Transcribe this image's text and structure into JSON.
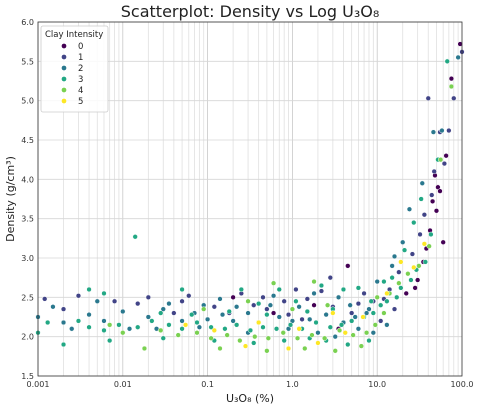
{
  "chart_data": {
    "type": "scatter",
    "title": "Scatterplot: Density vs Log U₃O₈",
    "xlabel": "U₃O₈ (%)",
    "ylabel": "Density (g/cm³)",
    "x_scale": "log",
    "xlim": [
      0.001,
      100.0
    ],
    "ylim": [
      1.5,
      6.0
    ],
    "x_ticks": [
      0.001,
      0.01,
      0.1,
      1.0,
      10.0,
      100.0
    ],
    "x_tick_labels": [
      "0.001",
      "0.01",
      "0.1",
      "1.0",
      "10.0",
      "100.0"
    ],
    "y_ticks": [
      1.5,
      2.0,
      2.5,
      3.0,
      3.5,
      4.0,
      4.5,
      5.0,
      5.5,
      6.0
    ],
    "y_tick_labels": [
      "1.5",
      "2.0",
      "2.5",
      "3.0",
      "3.5",
      "4.0",
      "4.5",
      "5.0",
      "5.5",
      "6.0"
    ],
    "grid": true,
    "legend": {
      "title": "Clay Intensity",
      "placement": "top-left",
      "entries": [
        {
          "label": "0",
          "color": "#440154"
        },
        {
          "label": "1",
          "color": "#414487"
        },
        {
          "label": "2",
          "color": "#2a788e"
        },
        {
          "label": "3",
          "color": "#22a884"
        },
        {
          "label": "4",
          "color": "#7ad151"
        },
        {
          "label": "5",
          "color": "#fde725"
        }
      ]
    },
    "series": [
      {
        "name": "0",
        "color": "#440154",
        "points": [
          [
            95,
            5.72
          ],
          [
            75,
            5.28
          ],
          [
            48,
            4.05
          ],
          [
            52,
            3.9
          ],
          [
            45,
            3.72
          ],
          [
            50,
            3.6
          ],
          [
            42,
            3.35
          ],
          [
            38,
            3.12
          ],
          [
            30,
            2.72
          ],
          [
            22,
            2.55
          ],
          [
            4.5,
            2.9
          ],
          [
            1.8,
            2.4
          ],
          [
            0.6,
            2.3
          ],
          [
            0.2,
            2.5
          ],
          [
            3.5,
            2.1
          ],
          [
            60,
            3.2
          ],
          [
            55,
            3.85
          ],
          [
            65,
            4.3
          ],
          [
            35,
            2.95
          ],
          [
            28,
            2.62
          ]
        ]
      },
      {
        "name": "1",
        "color": "#414487",
        "points": [
          [
            100,
            5.62
          ],
          [
            80,
            5.03
          ],
          [
            70,
            4.62
          ],
          [
            55,
            4.6
          ],
          [
            62,
            4.2
          ],
          [
            40,
            5.03
          ],
          [
            47,
            4.1
          ],
          [
            44,
            3.8
          ],
          [
            36,
            3.55
          ],
          [
            32,
            3.3
          ],
          [
            26,
            3.05
          ],
          [
            18,
            2.82
          ],
          [
            14,
            2.6
          ],
          [
            12,
            2.48
          ],
          [
            9,
            2.45
          ],
          [
            6,
            2.42
          ],
          [
            3,
            2.38
          ],
          [
            1.5,
            2.48
          ],
          [
            0.8,
            2.45
          ],
          [
            0.35,
            2.4
          ],
          [
            0.12,
            2.38
          ],
          [
            0.05,
            2.45
          ],
          [
            0.02,
            2.5
          ],
          [
            0.008,
            2.45
          ],
          [
            0.003,
            2.52
          ],
          [
            0.002,
            2.35
          ],
          [
            0.0012,
            2.48
          ],
          [
            0.04,
            2.3
          ],
          [
            0.25,
            2.55
          ],
          [
            2.2,
            2.58
          ],
          [
            7,
            2.55
          ],
          [
            0.015,
            2.42
          ],
          [
            0.06,
            2.52
          ],
          [
            0.5,
            2.35
          ],
          [
            1.1,
            2.6
          ],
          [
            5,
            2.3
          ],
          [
            2.8,
            2.75
          ],
          [
            0.9,
            2.28
          ],
          [
            0.18,
            2.3
          ],
          [
            0.45,
            2.5
          ],
          [
            1.3,
            2.22
          ],
          [
            11,
            2.2
          ],
          [
            16,
            2.35
          ]
        ]
      },
      {
        "name": "2",
        "color": "#2a788e",
        "points": [
          [
            90,
            5.55
          ],
          [
            58,
            4.62
          ],
          [
            46,
            4.6
          ],
          [
            34,
            3.95
          ],
          [
            24,
            3.62
          ],
          [
            20,
            3.2
          ],
          [
            16,
            3.02
          ],
          [
            15,
            2.9
          ],
          [
            10,
            2.7
          ],
          [
            8,
            2.35
          ],
          [
            5.5,
            2.25
          ],
          [
            4,
            2.18
          ],
          [
            2.5,
            2.28
          ],
          [
            1.6,
            2.22
          ],
          [
            1,
            2.2
          ],
          [
            0.7,
            2.25
          ],
          [
            0.4,
            2.18
          ],
          [
            0.3,
            2.3
          ],
          [
            0.2,
            2.2
          ],
          [
            0.15,
            2.28
          ],
          [
            0.1,
            2.22
          ],
          [
            0.07,
            2.3
          ],
          [
            0.05,
            2.2
          ],
          [
            0.03,
            2.35
          ],
          [
            0.02,
            2.25
          ],
          [
            0.01,
            2.32
          ],
          [
            0.006,
            2.2
          ],
          [
            0.004,
            2.28
          ],
          [
            0.002,
            2.18
          ],
          [
            0.001,
            2.25
          ],
          [
            0.0015,
            2.38
          ],
          [
            0.0025,
            2.1
          ],
          [
            0.005,
            2.45
          ],
          [
            0.012,
            2.1
          ],
          [
            0.025,
            2.1
          ],
          [
            0.08,
            2.12
          ],
          [
            0.3,
            2.05
          ],
          [
            0.9,
            2.1
          ],
          [
            2,
            2.05
          ],
          [
            3.2,
            2.0
          ],
          [
            6,
            2.1
          ],
          [
            9,
            2.05
          ],
          [
            13,
            2.15
          ],
          [
            1.2,
            2.38
          ],
          [
            0.55,
            2.4
          ],
          [
            0.22,
            2.38
          ],
          [
            0.09,
            2.4
          ],
          [
            0.035,
            2.42
          ],
          [
            0.6,
            2.52
          ],
          [
            1.8,
            2.55
          ],
          [
            3.5,
            2.5
          ],
          [
            0.14,
            2.48
          ],
          [
            4.8,
            2.4
          ],
          [
            7.5,
            2.3
          ]
        ]
      },
      {
        "name": "3",
        "color": "#22a884",
        "points": [
          [
            67,
            5.5
          ],
          [
            52,
            4.25
          ],
          [
            43,
            3.3
          ],
          [
            37,
            2.95
          ],
          [
            29,
            2.85
          ],
          [
            25,
            2.72
          ],
          [
            19,
            2.62
          ],
          [
            17,
            2.5
          ],
          [
            13,
            2.45
          ],
          [
            11,
            2.4
          ],
          [
            9,
            2.3
          ],
          [
            7,
            2.25
          ],
          [
            5,
            2.2
          ],
          [
            3.8,
            2.15
          ],
          [
            2.8,
            2.12
          ],
          [
            1.9,
            2.18
          ],
          [
            1.3,
            2.1
          ],
          [
            0.95,
            2.15
          ],
          [
            0.65,
            2.1
          ],
          [
            0.45,
            2.12
          ],
          [
            0.32,
            2.08
          ],
          [
            0.22,
            2.15
          ],
          [
            0.16,
            2.1
          ],
          [
            0.11,
            2.12
          ],
          [
            0.075,
            2.18
          ],
          [
            0.05,
            2.1
          ],
          [
            0.035,
            2.15
          ],
          [
            0.022,
            2.2
          ],
          [
            0.015,
            2.12
          ],
          [
            0.009,
            2.15
          ],
          [
            0.006,
            2.08
          ],
          [
            0.004,
            2.12
          ],
          [
            0.003,
            2.2
          ],
          [
            0.002,
            1.9
          ],
          [
            0.001,
            2.05
          ],
          [
            0.0013,
            2.18
          ],
          [
            0.007,
            1.95
          ],
          [
            0.03,
            1.98
          ],
          [
            0.12,
            1.95
          ],
          [
            0.35,
            1.92
          ],
          [
            0.8,
            1.95
          ],
          [
            1.6,
            1.98
          ],
          [
            2.5,
            1.95
          ],
          [
            4.5,
            1.9
          ],
          [
            8,
            1.95
          ],
          [
            0.014,
            3.27
          ],
          [
            0.004,
            2.6
          ],
          [
            0.006,
            2.55
          ],
          [
            0.05,
            2.6
          ],
          [
            0.25,
            2.6
          ],
          [
            0.7,
            2.6
          ],
          [
            2.2,
            2.65
          ],
          [
            6,
            2.62
          ],
          [
            12,
            2.7
          ],
          [
            4,
            2.6
          ],
          [
            1.5,
            2.32
          ],
          [
            0.5,
            2.28
          ],
          [
            0.18,
            2.32
          ],
          [
            0.065,
            2.28
          ],
          [
            0.028,
            2.3
          ],
          [
            3,
            2.35
          ],
          [
            8.5,
            2.45
          ],
          [
            0.4,
            2.42
          ],
          [
            1.1,
            2.45
          ],
          [
            15,
            2.75
          ],
          [
            21,
            3.1
          ],
          [
            27,
            3.45
          ],
          [
            33,
            3.75
          ]
        ]
      },
      {
        "name": "4",
        "color": "#7ad151",
        "points": [
          [
            75,
            5.18
          ],
          [
            56,
            4.25
          ],
          [
            41,
            3.15
          ],
          [
            31,
            2.9
          ],
          [
            23,
            2.8
          ],
          [
            18,
            2.68
          ],
          [
            14,
            2.55
          ],
          [
            10,
            2.5
          ],
          [
            7.5,
            2.05
          ],
          [
            5.2,
            2.02
          ],
          [
            3.6,
            2.08
          ],
          [
            2.4,
            1.98
          ],
          [
            1.7,
            2.02
          ],
          [
            1.15,
            1.98
          ],
          [
            0.78,
            2.05
          ],
          [
            0.52,
            1.98
          ],
          [
            0.36,
            2.0
          ],
          [
            0.24,
            1.95
          ],
          [
            0.17,
            2.02
          ],
          [
            0.11,
            1.98
          ],
          [
            0.075,
            2.05
          ],
          [
            0.045,
            2.02
          ],
          [
            0.028,
            2.08
          ],
          [
            0.018,
            1.85
          ],
          [
            0.01,
            2.05
          ],
          [
            0.14,
            1.85
          ],
          [
            0.5,
            1.82
          ],
          [
            1.4,
            1.85
          ],
          [
            3.2,
            1.82
          ],
          [
            6.5,
            1.88
          ],
          [
            0.007,
            2.15
          ],
          [
            0.09,
            2.35
          ],
          [
            0.3,
            2.45
          ],
          [
            1.0,
            2.35
          ],
          [
            2.6,
            2.4
          ],
          [
            9.5,
            2.15
          ],
          [
            12,
            2.3
          ],
          [
            0.6,
            2.68
          ],
          [
            1.8,
            2.7
          ]
        ]
      },
      {
        "name": "5",
        "color": "#fde725",
        "points": [
          [
            36,
            3.18
          ],
          [
            27,
            2.88
          ],
          [
            0.28,
            1.88
          ],
          [
            0.9,
            1.85
          ],
          [
            2.0,
            1.92
          ],
          [
            0.12,
            2.08
          ],
          [
            4.2,
            2.05
          ],
          [
            13,
            2.55
          ],
          [
            0.055,
            2.15
          ],
          [
            6.8,
            2.25
          ],
          [
            1.2,
            2.1
          ],
          [
            0.4,
            2.18
          ],
          [
            19,
            2.95
          ],
          [
            3,
            2.3
          ]
        ]
      }
    ]
  }
}
